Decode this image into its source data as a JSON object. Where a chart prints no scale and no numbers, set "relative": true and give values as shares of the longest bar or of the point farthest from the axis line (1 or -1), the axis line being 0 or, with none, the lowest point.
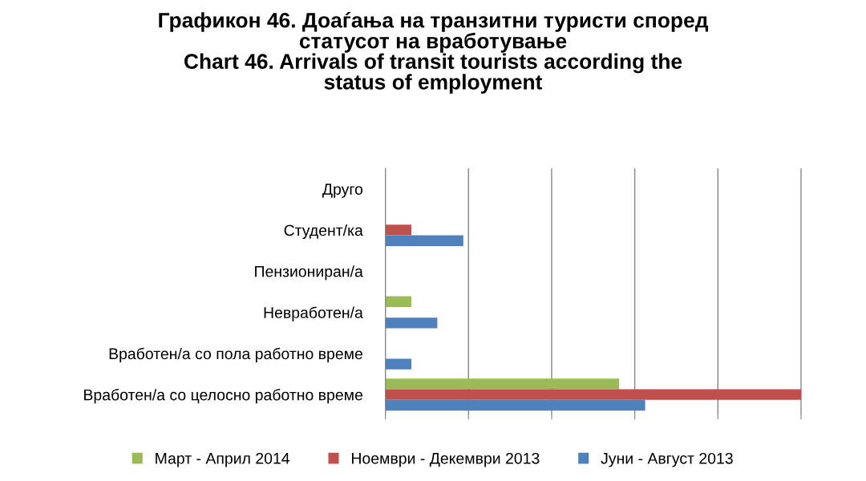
{
  "chart_data": {
    "type": "bar",
    "orientation": "horizontal",
    "relative": true,
    "title": "Графикон 46. Доаѓања на транзитни туристи според\nстатусот на вработување\nChart 46. Arrivals of transit tourists according the\nstatus of employment",
    "categories": [
      "Друго",
      "Студент/ка",
      "Пензиониран/а",
      "Невработен/а",
      "Вработен/а со пола работно време",
      "Вработен/а со целосно работно време"
    ],
    "series": [
      {
        "name": "Март - Април 2014",
        "color": "#9bbb59",
        "values": [
          null,
          null,
          null,
          0.0625,
          null,
          0.5625
        ]
      },
      {
        "name": "Ноември - Декември 2013",
        "color": "#c0504d",
        "values": [
          null,
          0.0625,
          null,
          null,
          null,
          1
        ]
      },
      {
        "name": "Јуни - Август 2013",
        "color": "#4f81bd",
        "values": [
          null,
          0.1875,
          null,
          0.125,
          0.0625,
          0.625
        ]
      }
    ],
    "grid": "x",
    "legend": "bottom"
  }
}
